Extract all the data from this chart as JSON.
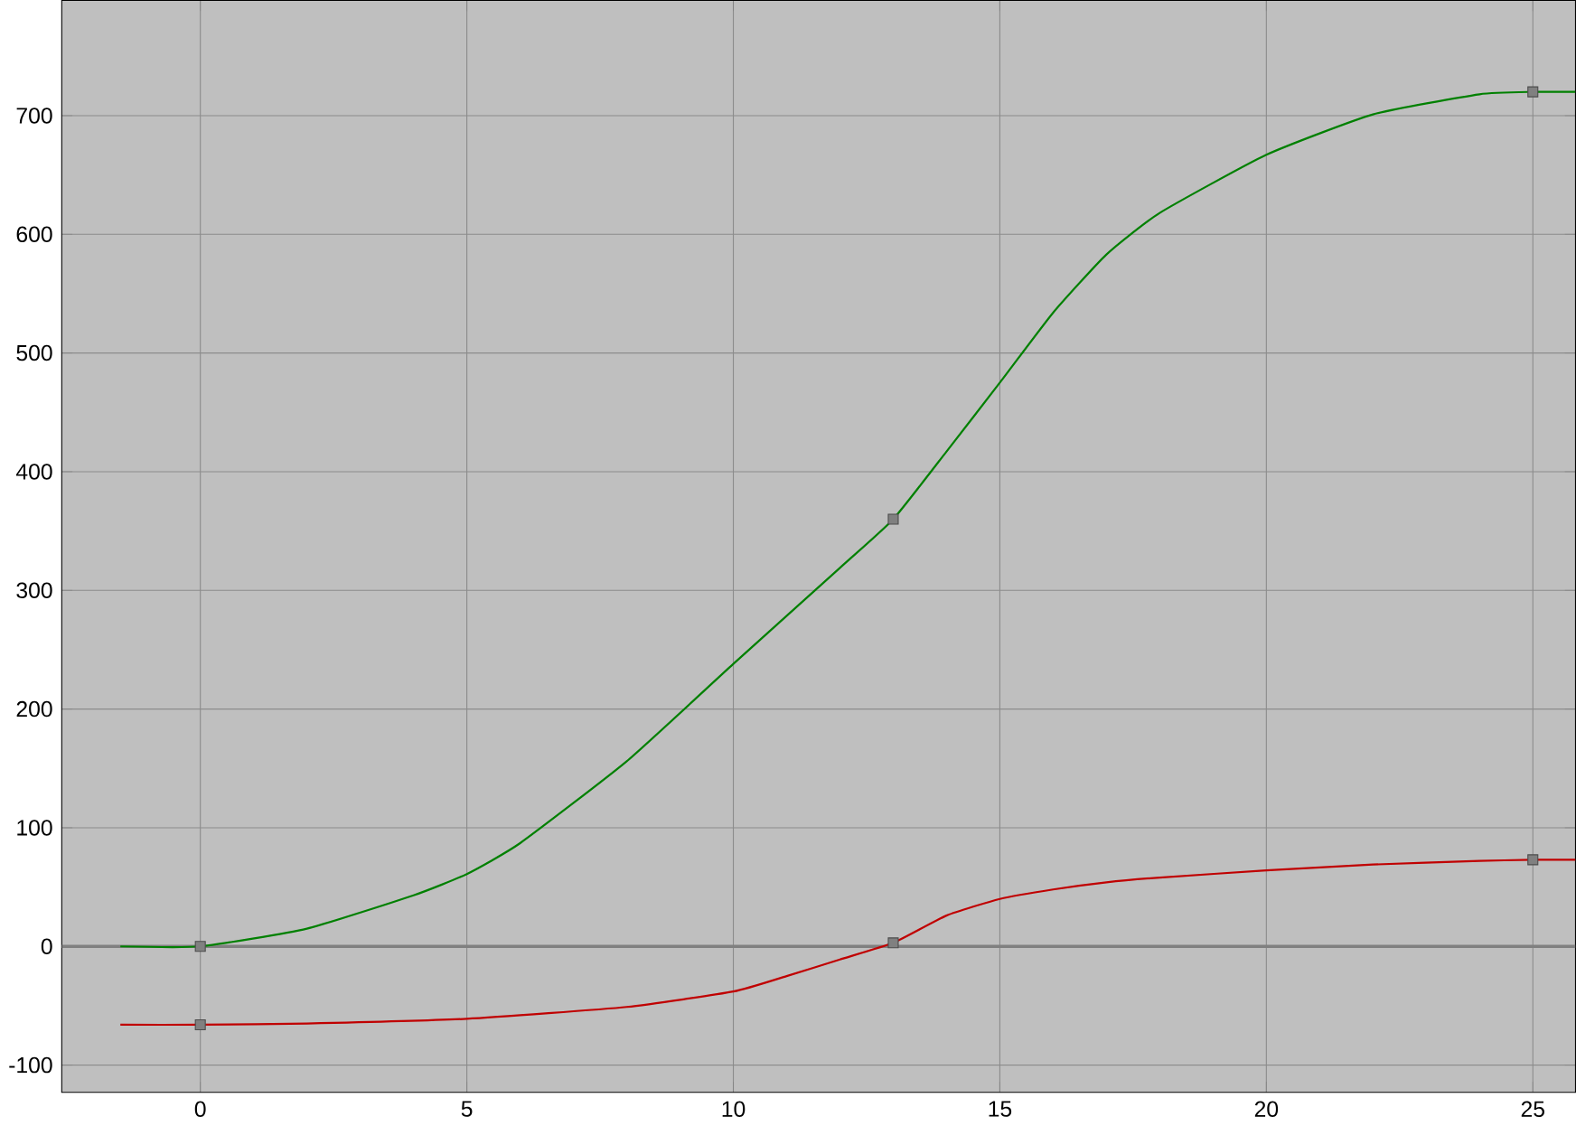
{
  "chart_data": {
    "type": "line",
    "xlim": [
      -2.6,
      25.8
    ],
    "ylim": [
      -123,
      797
    ],
    "xticks": [
      0,
      5,
      10,
      15,
      20,
      25
    ],
    "yticks": [
      -100,
      0,
      100,
      200,
      300,
      400,
      500,
      600,
      700
    ],
    "grid": true,
    "ref_lines": [
      {
        "axis": "y",
        "value": 0,
        "color": "#808080"
      }
    ],
    "series": [
      {
        "color": "#008000",
        "x": [
          -1.5,
          0,
          2,
          4,
          5,
          6,
          8,
          10,
          12,
          13,
          14,
          15,
          16,
          17,
          18,
          20,
          22,
          24,
          25,
          25.8
        ],
        "values": [
          0,
          0,
          15,
          43,
          61,
          87,
          156,
          238,
          319,
          360,
          417,
          475,
          534,
          583,
          618,
          667,
          701,
          718,
          720,
          720
        ]
      },
      {
        "color": "#c00000",
        "x": [
          -1.5,
          0,
          2,
          5,
          8,
          10,
          11,
          12,
          13,
          14,
          15,
          16,
          17,
          18,
          20,
          22,
          24,
          25,
          25.8
        ],
        "values": [
          -66,
          -66,
          -65,
          -61,
          -51,
          -38,
          -25,
          -11,
          3,
          26,
          40,
          48,
          54,
          58,
          64,
          69,
          72,
          73,
          73
        ]
      },
      {
        "type": "scatter",
        "marker": "square",
        "color": "#808080",
        "x": [
          0,
          13,
          25,
          0,
          13,
          25
        ],
        "values": [
          0,
          360,
          720,
          -66,
          3,
          73
        ]
      }
    ]
  }
}
